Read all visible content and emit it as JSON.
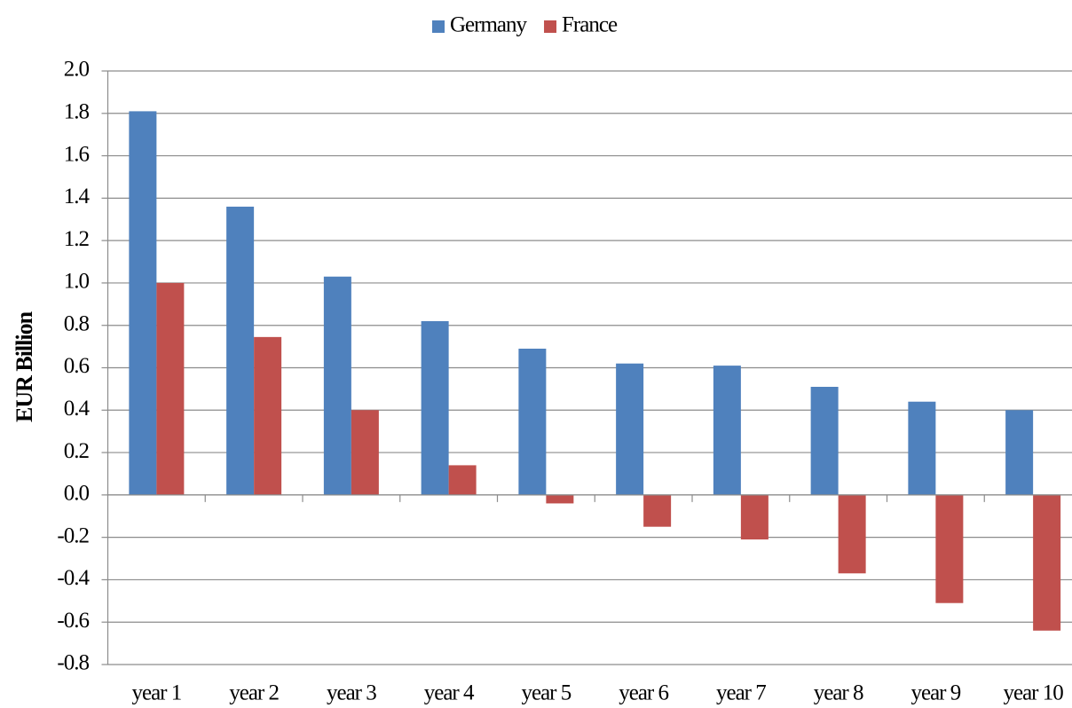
{
  "chart_data": {
    "type": "bar",
    "y_label": "EUR Billion",
    "categories": [
      "year 1",
      "year 2",
      "year 3",
      "year 4",
      "year 5",
      "year 6",
      "year 7",
      "year 8",
      "year 9",
      "year 10"
    ],
    "series": [
      {
        "name": "Germany",
        "color": "#4f81bd",
        "values": [
          1.81,
          1.36,
          1.03,
          0.82,
          0.69,
          0.62,
          0.61,
          0.51,
          0.44,
          0.4
        ]
      },
      {
        "name": "France",
        "color": "#c0504d",
        "values": [
          1.0,
          0.745,
          0.4,
          0.14,
          -0.04,
          -0.15,
          -0.21,
          -0.37,
          -0.51,
          -0.64
        ]
      }
    ],
    "ylim": [
      -0.8,
      2.0
    ],
    "yticks": [
      {
        "value": 2.0,
        "label": "2.0"
      },
      1.8,
      1.6,
      1.4,
      1.2,
      {
        "value": 1.0,
        "label": "1.0"
      },
      0.8,
      0.6,
      0.4,
      0.2,
      {
        "value": 0.0,
        "label": "0.0"
      },
      -0.2,
      -0.4,
      -0.6,
      -0.8
    ],
    "grid": true,
    "legend": "top"
  }
}
